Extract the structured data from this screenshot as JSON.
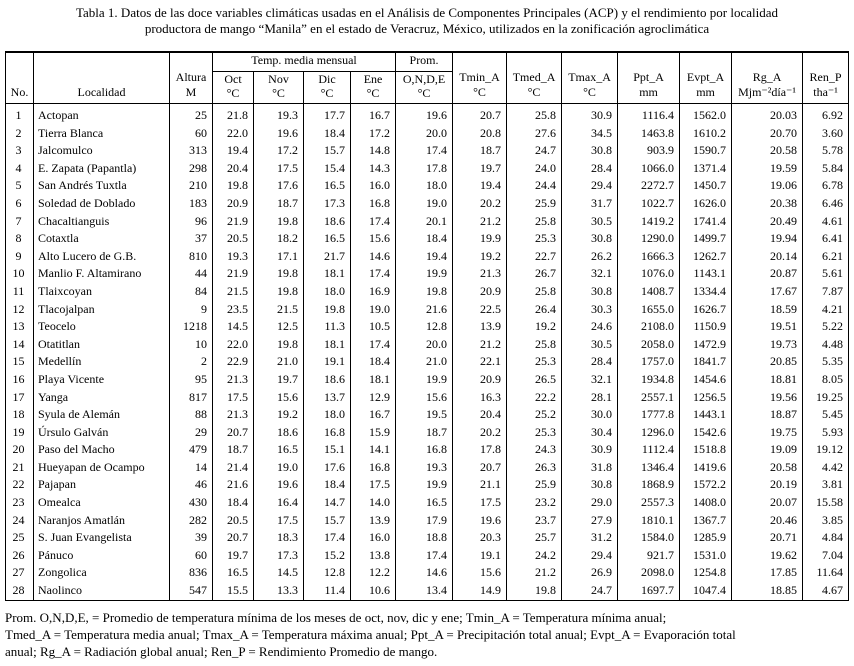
{
  "title": [
    "Tabla 1. Datos de las doce variables climáticas usadas en el Análisis de Componentes Principales (ACP) y el rendimiento por localidad",
    "productora de mango “Manila” en el estado de Veracruz, México, utilizados en la zonificación agroclimática"
  ],
  "table": {
    "group_headers": [
      "Temp. media mensual",
      "Prom."
    ],
    "headers": [
      [
        "No."
      ],
      [
        "Localidad"
      ],
      [
        "Altura",
        "M"
      ],
      [
        "Oct",
        "°C"
      ],
      [
        "Nov",
        "°C"
      ],
      [
        "Dic",
        "°C"
      ],
      [
        "Ene",
        "°C"
      ],
      [
        "O,N,D,E",
        "°C"
      ],
      [
        "Tmin_A",
        "°C"
      ],
      [
        "Tmed_A",
        "°C"
      ],
      [
        "Tmax_A",
        "°C"
      ],
      [
        "Ppt_A",
        "mm"
      ],
      [
        "Evpt_A",
        "mm"
      ],
      [
        "Rg_A",
        "Mjm⁻²día⁻¹"
      ],
      [
        "Ren_P",
        "tha⁻¹"
      ]
    ],
    "rows": [
      [
        "1",
        "Actopan",
        "25",
        "21.8",
        "19.3",
        "17.7",
        "16.7",
        "19.6",
        "20.7",
        "25.8",
        "30.9",
        "1116.4",
        "1562.0",
        "20.03",
        "6.92"
      ],
      [
        "2",
        "Tierra Blanca",
        "60",
        "22.0",
        "19.6",
        "18.4",
        "17.2",
        "20.0",
        "20.8",
        "27.6",
        "34.5",
        "1463.8",
        "1610.2",
        "20.70",
        "3.60"
      ],
      [
        "3",
        "Jalcomulco",
        "313",
        "19.4",
        "17.2",
        "15.7",
        "14.8",
        "17.4",
        "18.7",
        "24.7",
        "30.8",
        "903.9",
        "1590.7",
        "20.58",
        "5.78"
      ],
      [
        "4",
        "E. Zapata (Papantla)",
        "298",
        "20.4",
        "17.5",
        "15.4",
        "14.3",
        "17.8",
        "19.7",
        "24.0",
        "28.4",
        "1066.0",
        "1371.4",
        "19.59",
        "5.84"
      ],
      [
        "5",
        "San Andrés Tuxtla",
        "210",
        "19.8",
        "17.6",
        "16.5",
        "16.0",
        "18.0",
        "19.4",
        "24.4",
        "29.4",
        "2272.7",
        "1450.7",
        "19.06",
        "6.78"
      ],
      [
        "6",
        "Soledad de Doblado",
        "183",
        "20.9",
        "18.7",
        "17.3",
        "16.8",
        "19.0",
        "20.2",
        "25.9",
        "31.7",
        "1022.7",
        "1626.0",
        "20.38",
        "6.46"
      ],
      [
        "7",
        "Chacaltianguis",
        "96",
        "21.9",
        "19.8",
        "18.6",
        "17.4",
        "20.1",
        "21.2",
        "25.8",
        "30.5",
        "1419.2",
        "1741.4",
        "20.49",
        "4.61"
      ],
      [
        "8",
        "Cotaxtla",
        "37",
        "20.5",
        "18.2",
        "16.5",
        "15.6",
        "18.4",
        "19.9",
        "25.3",
        "30.8",
        "1290.0",
        "1499.7",
        "19.94",
        "6.41"
      ],
      [
        "9",
        "Alto Lucero de G.B.",
        "810",
        "19.3",
        "17.1",
        "21.7",
        "14.6",
        "19.4",
        "19.2",
        "22.7",
        "26.2",
        "1666.3",
        "1262.7",
        "20.14",
        "6.21"
      ],
      [
        "10",
        "Manlio F. Altamirano",
        "44",
        "21.9",
        "19.8",
        "18.1",
        "17.4",
        "19.9",
        "21.3",
        "26.7",
        "32.1",
        "1076.0",
        "1143.1",
        "20.87",
        "5.61"
      ],
      [
        "11",
        "Tlaixcoyan",
        "84",
        "21.5",
        "19.8",
        "18.0",
        "16.9",
        "19.8",
        "20.9",
        "25.8",
        "30.8",
        "1408.7",
        "1334.4",
        "17.67",
        "7.87"
      ],
      [
        "12",
        "Tlacojalpan",
        "9",
        "23.5",
        "21.5",
        "19.8",
        "19.0",
        "21.6",
        "22.5",
        "26.4",
        "30.3",
        "1655.0",
        "1626.7",
        "18.59",
        "4.21"
      ],
      [
        "13",
        "Teocelo",
        "1218",
        "14.5",
        "12.5",
        "11.3",
        "10.5",
        "12.8",
        "13.9",
        "19.2",
        "24.6",
        "2108.0",
        "1150.9",
        "19.51",
        "5.22"
      ],
      [
        "14",
        "Otatitlan",
        "10",
        "22.0",
        "19.8",
        "18.1",
        "17.4",
        "20.0",
        "21.2",
        "25.8",
        "30.5",
        "2058.0",
        "1472.9",
        "19.73",
        "4.48"
      ],
      [
        "15",
        "Medellín",
        "2",
        "22.9",
        "21.0",
        "19.1",
        "18.4",
        "21.0",
        "22.1",
        "25.3",
        "28.4",
        "1757.0",
        "1841.7",
        "20.85",
        "5.35"
      ],
      [
        "16",
        "Playa Vicente",
        "95",
        "21.3",
        "19.7",
        "18.6",
        "18.1",
        "19.9",
        "20.9",
        "26.5",
        "32.1",
        "1934.8",
        "1454.6",
        "18.81",
        "8.05"
      ],
      [
        "17",
        "Yanga",
        "817",
        "17.5",
        "15.6",
        "13.7",
        "12.9",
        "15.6",
        "16.3",
        "22.2",
        "28.1",
        "2557.1",
        "1256.5",
        "19.56",
        "19.25"
      ],
      [
        "18",
        "Syula de Alemán",
        "88",
        "21.3",
        "19.2",
        "18.0",
        "16.7",
        "19.5",
        "20.4",
        "25.2",
        "30.0",
        "1777.8",
        "1443.1",
        "18.87",
        "5.45"
      ],
      [
        "19",
        "Úrsulo Galván",
        "29",
        "20.7",
        "18.6",
        "16.8",
        "15.9",
        "18.7",
        "20.2",
        "25.3",
        "30.4",
        "1296.0",
        "1542.6",
        "19.75",
        "5.93"
      ],
      [
        "20",
        "Paso del Macho",
        "479",
        "18.7",
        "16.5",
        "15.1",
        "14.1",
        "16.8",
        "17.8",
        "24.3",
        "30.9",
        "1112.4",
        "1518.8",
        "19.09",
        "19.12"
      ],
      [
        "21",
        "Hueyapan de Ocampo",
        "14",
        "21.4",
        "19.0",
        "17.6",
        "16.8",
        "19.3",
        "20.7",
        "26.3",
        "31.8",
        "1346.4",
        "1419.6",
        "20.58",
        "4.42"
      ],
      [
        "22",
        "Pajapan",
        "46",
        "21.6",
        "19.6",
        "18.4",
        "17.5",
        "19.9",
        "21.1",
        "25.9",
        "30.8",
        "1868.9",
        "1572.2",
        "20.19",
        "3.81"
      ],
      [
        "23",
        "Omealca",
        "430",
        "18.4",
        "16.4",
        "14.7",
        "14.0",
        "16.5",
        "17.5",
        "23.2",
        "29.0",
        "2557.3",
        "1408.0",
        "20.07",
        "15.58"
      ],
      [
        "24",
        "Naranjos Amatlán",
        "282",
        "20.5",
        "17.5",
        "15.7",
        "13.9",
        "17.9",
        "19.6",
        "23.7",
        "27.9",
        "1810.1",
        "1367.7",
        "20.46",
        "3.85"
      ],
      [
        "25",
        "S. Juan Evangelista",
        "39",
        "20.7",
        "18.3",
        "17.4",
        "16.0",
        "18.8",
        "20.3",
        "25.7",
        "31.2",
        "1584.0",
        "1285.9",
        "20.71",
        "4.84"
      ],
      [
        "26",
        "Pánuco",
        "60",
        "19.7",
        "17.3",
        "15.2",
        "13.8",
        "17.4",
        "19.1",
        "24.2",
        "29.4",
        "921.7",
        "1531.0",
        "19.62",
        "7.04"
      ],
      [
        "27",
        "Zongolica",
        "836",
        "16.5",
        "14.5",
        "12.8",
        "12.2",
        "14.6",
        "15.6",
        "21.2",
        "26.9",
        "2098.0",
        "1254.8",
        "17.85",
        "11.64"
      ],
      [
        "28",
        "Naolinco",
        "547",
        "15.5",
        "13.3",
        "11.4",
        "10.6",
        "13.4",
        "14.9",
        "19.8",
        "24.7",
        "1697.7",
        "1047.4",
        "18.85",
        "4.67"
      ]
    ]
  },
  "footnote": [
    "Prom. O,N,D,E, = Promedio de temperatura mínima de los meses de oct, nov, dic y ene; Tmin_A = Temperatura mínima anual;",
    "Tmed_A = Temperatura media anual; Tmax_A = Temperatura máxima anual; Ppt_A = Precipitación total anual; Evpt_A = Evaporación total",
    "anual; Rg_A = Radiación global anual; Ren_P = Rendimiento Promedio de mango."
  ]
}
